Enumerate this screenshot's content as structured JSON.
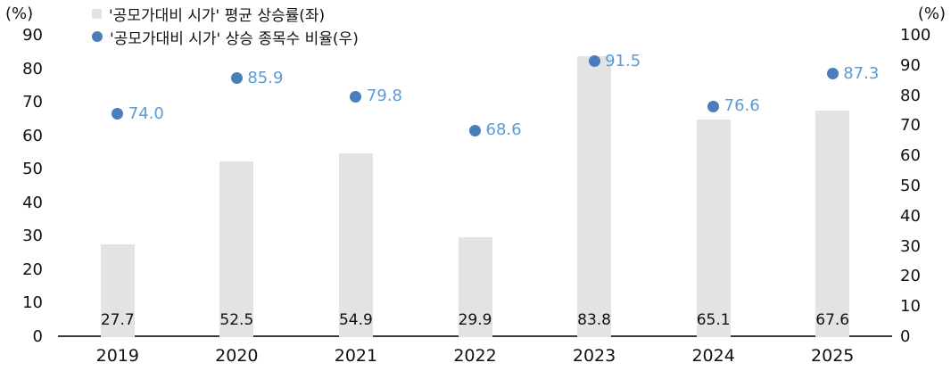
{
  "chart_data": {
    "type": "bar",
    "categories": [
      "2019",
      "2020",
      "2021",
      "2022",
      "2023",
      "2024",
      "2025"
    ],
    "series": [
      {
        "name": "'공모가대비 시가' 평균 상승률(좌)",
        "type": "bar",
        "axis": "left",
        "values": [
          27.7,
          52.5,
          54.9,
          29.9,
          83.8,
          65.1,
          67.6
        ],
        "color": "#e3e3e3",
        "label_color": "#111111"
      },
      {
        "name": "'공모가대비 시가' 상승 종목수 비율(우)",
        "type": "scatter",
        "axis": "right",
        "values": [
          74.0,
          85.9,
          79.8,
          68.6,
          91.5,
          76.6,
          87.3
        ],
        "color": "#4a7ebb",
        "label_color": "#5b9bd5"
      }
    ],
    "left_axis": {
      "label": "(%)",
      "min": 0,
      "max": 90,
      "step": 10,
      "ticks": [
        0,
        10,
        20,
        30,
        40,
        50,
        60,
        70,
        80,
        90
      ]
    },
    "right_axis": {
      "label": "(%)",
      "min": 0,
      "max": 100,
      "step": 10,
      "ticks": [
        0,
        10,
        20,
        30,
        40,
        50,
        60,
        70,
        80,
        90,
        100
      ]
    },
    "grid": false,
    "legend_position": "top-left",
    "title": ""
  }
}
